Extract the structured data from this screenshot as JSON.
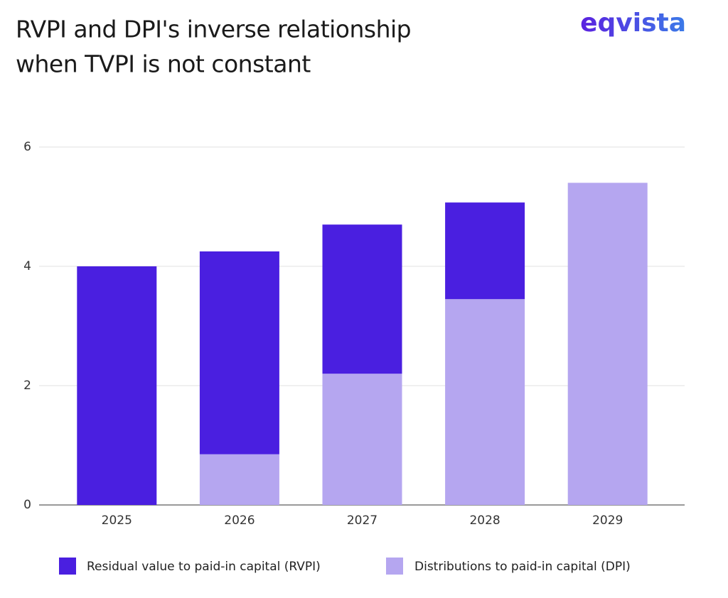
{
  "chart_data": {
    "type": "stacked_bar",
    "title": [
      "RVPI and DPI's inverse relationship",
      "when TVPI is not constant"
    ],
    "logo": "eqvista",
    "categories": [
      "2025",
      "2026",
      "2027",
      "2028",
      "2029"
    ],
    "series": [
      {
        "name": "Residual value to paid-in capital (RVPI)",
        "color": "#4a1fe0",
        "values": [
          4.0,
          3.4,
          2.5,
          1.62,
          0
        ]
      },
      {
        "name": "Distributions to paid-in capital (DPI)",
        "color": "#b5a6f0",
        "values": [
          0,
          0.85,
          2.2,
          3.45,
          5.4
        ]
      }
    ],
    "ylim": [
      0,
      6
    ],
    "yticks": [
      0,
      2,
      4,
      6
    ],
    "grid": true
  }
}
